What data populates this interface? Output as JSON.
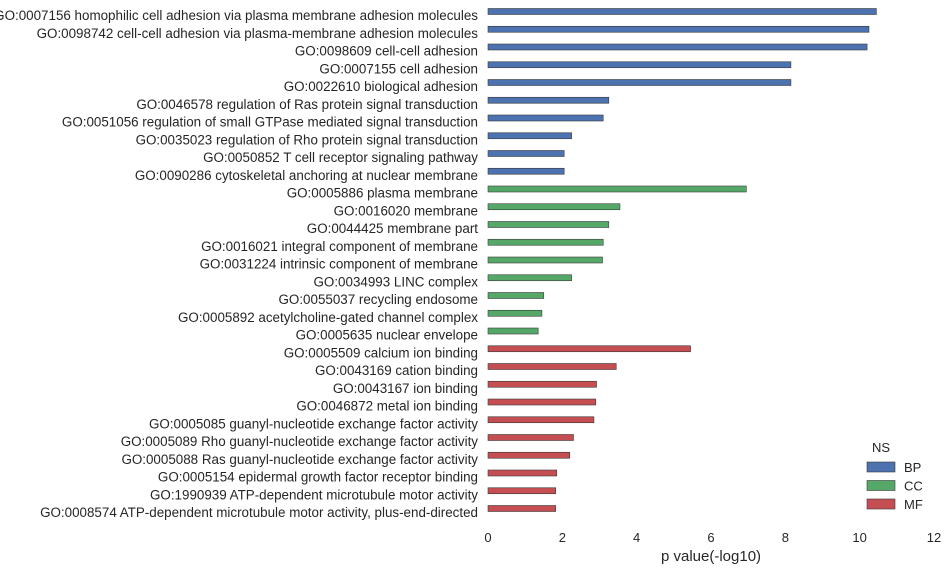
{
  "chart_data": {
    "type": "bar",
    "orientation": "horizontal",
    "xlabel": "p value(-log10)",
    "xlim": [
      0,
      12
    ],
    "xticks": [
      0,
      2,
      4,
      6,
      8,
      10,
      12
    ],
    "legend": {
      "title": "NS",
      "placement": "bottom-right",
      "entries": [
        {
          "name": "BP",
          "color": "#4C72B0"
        },
        {
          "name": "CC",
          "color": "#55A868"
        },
        {
          "name": "MF",
          "color": "#C44E52"
        }
      ]
    },
    "grid": false,
    "series": [
      {
        "name": "BP",
        "color": "#4C72B0",
        "categories": [
          "GO:0007156 homophilic cell adhesion via plasma membrane adhesion molecules",
          "GO:0098742 cell-cell adhesion via plasma-membrane adhesion molecules",
          "GO:0098609 cell-cell adhesion",
          "GO:0007155 cell adhesion",
          "GO:0022610 biological adhesion",
          "GO:0046578 regulation of Ras protein signal transduction",
          "GO:0051056 regulation of small GTPase mediated signal transduction",
          "GO:0035023 regulation of Rho protein signal transduction",
          "GO:0050852 T cell receptor signaling pathway",
          "GO:0090286 cytoskeletal anchoring at nuclear membrane"
        ],
        "values": [
          10.45,
          10.25,
          10.2,
          8.15,
          8.15,
          3.25,
          3.1,
          2.25,
          2.05,
          2.05
        ]
      },
      {
        "name": "CC",
        "color": "#55A868",
        "categories": [
          "GO:0005886 plasma membrane",
          "GO:0016020 membrane",
          "GO:0044425 membrane part",
          "GO:0016021 integral component of membrane",
          "GO:0031224 intrinsic component of membrane",
          "GO:0034993 LINC complex",
          "GO:0055037 recycling endosome",
          "GO:0005892 acetylcholine-gated channel complex",
          "GO:0005635 nuclear envelope"
        ],
        "values": [
          6.95,
          3.55,
          3.25,
          3.1,
          3.08,
          2.25,
          1.5,
          1.45,
          1.35
        ]
      },
      {
        "name": "MF",
        "color": "#C44E52",
        "categories": [
          "GO:0005509 calcium ion binding",
          "GO:0043169 cation binding",
          "GO:0043167 ion binding",
          "GO:0046872 metal ion binding",
          "GO:0005085 guanyl-nucleotide exchange factor activity",
          "GO:0005089 Rho guanyl-nucleotide exchange factor activity",
          "GO:0005088 Ras guanyl-nucleotide exchange factor activity",
          "GO:0005154 epidermal growth factor receptor binding",
          "GO:1990939 ATP-dependent microtubule motor activity",
          "GO:0008574 ATP-dependent microtubule motor activity, plus-end-directed"
        ],
        "values": [
          5.45,
          3.45,
          2.92,
          2.9,
          2.85,
          2.3,
          2.2,
          1.85,
          1.82,
          1.82
        ]
      }
    ]
  }
}
